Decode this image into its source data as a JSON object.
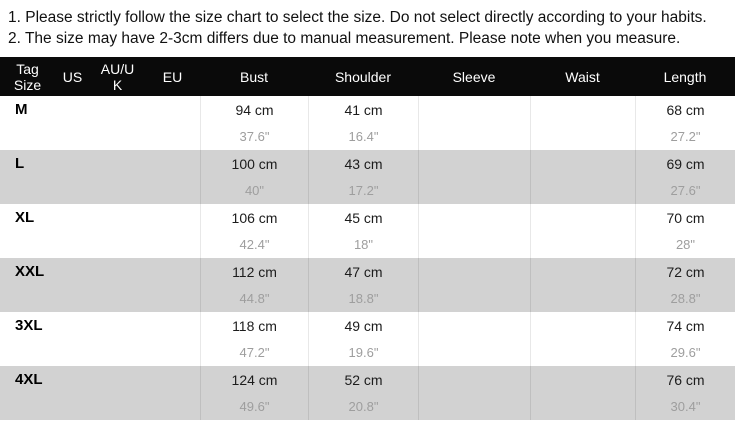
{
  "notes": [
    "1. Please strictly follow the size chart to select the size. Do not select directly according to your habits.",
    "2. The size may have 2-3cm differs due to manual measurement. Please note when you measure."
  ],
  "chart_data": {
    "type": "table",
    "title": "Garment size chart",
    "columns": [
      "Tag Size",
      "US",
      "AU/UK",
      "EU",
      "Bust",
      "Shoulder",
      "Sleeve",
      "Waist",
      "Length"
    ],
    "rows": [
      {
        "size": "M",
        "us": "",
        "au_uk": "",
        "eu": "",
        "bust_cm": "94 cm",
        "bust_in": "37.6\"",
        "shoulder_cm": "41 cm",
        "shoulder_in": "16.4\"",
        "sleeve_cm": "",
        "sleeve_in": "",
        "waist_cm": "",
        "waist_in": "",
        "length_cm": "68 cm",
        "length_in": "27.2\""
      },
      {
        "size": "L",
        "us": "",
        "au_uk": "",
        "eu": "",
        "bust_cm": "100 cm",
        "bust_in": "40\"",
        "shoulder_cm": "43 cm",
        "shoulder_in": "17.2\"",
        "sleeve_cm": "",
        "sleeve_in": "",
        "waist_cm": "",
        "waist_in": "",
        "length_cm": "69 cm",
        "length_in": "27.6\""
      },
      {
        "size": "XL",
        "us": "",
        "au_uk": "",
        "eu": "",
        "bust_cm": "106 cm",
        "bust_in": "42.4\"",
        "shoulder_cm": "45 cm",
        "shoulder_in": "18\"",
        "sleeve_cm": "",
        "sleeve_in": "",
        "waist_cm": "",
        "waist_in": "",
        "length_cm": "70 cm",
        "length_in": "28\""
      },
      {
        "size": "XXL",
        "us": "",
        "au_uk": "",
        "eu": "",
        "bust_cm": "112 cm",
        "bust_in": "44.8\"",
        "shoulder_cm": "47 cm",
        "shoulder_in": "18.8\"",
        "sleeve_cm": "",
        "sleeve_in": "",
        "waist_cm": "",
        "waist_in": "",
        "length_cm": "72 cm",
        "length_in": "28.8\""
      },
      {
        "size": "3XL",
        "us": "",
        "au_uk": "",
        "eu": "",
        "bust_cm": "118 cm",
        "bust_in": "47.2\"",
        "shoulder_cm": "49 cm",
        "shoulder_in": "19.6\"",
        "sleeve_cm": "",
        "sleeve_in": "",
        "waist_cm": "",
        "waist_in": "",
        "length_cm": "74 cm",
        "length_in": "29.6\""
      },
      {
        "size": "4XL",
        "us": "",
        "au_uk": "",
        "eu": "",
        "bust_cm": "124 cm",
        "bust_in": "49.6\"",
        "shoulder_cm": "52 cm",
        "shoulder_in": "20.8\"",
        "sleeve_cm": "",
        "sleeve_in": "",
        "waist_cm": "",
        "waist_in": "",
        "length_cm": "76 cm",
        "length_in": "30.4\""
      }
    ]
  },
  "colors": {
    "header_bg": "#0a0a0a",
    "header_text": "#ffffff",
    "row_bg": "#ffffff",
    "row_alt_bg": "#d2d2d2",
    "cm_text": "#1c1c1c",
    "inch_text": "#9e9e9e",
    "note_text": "#111111"
  }
}
